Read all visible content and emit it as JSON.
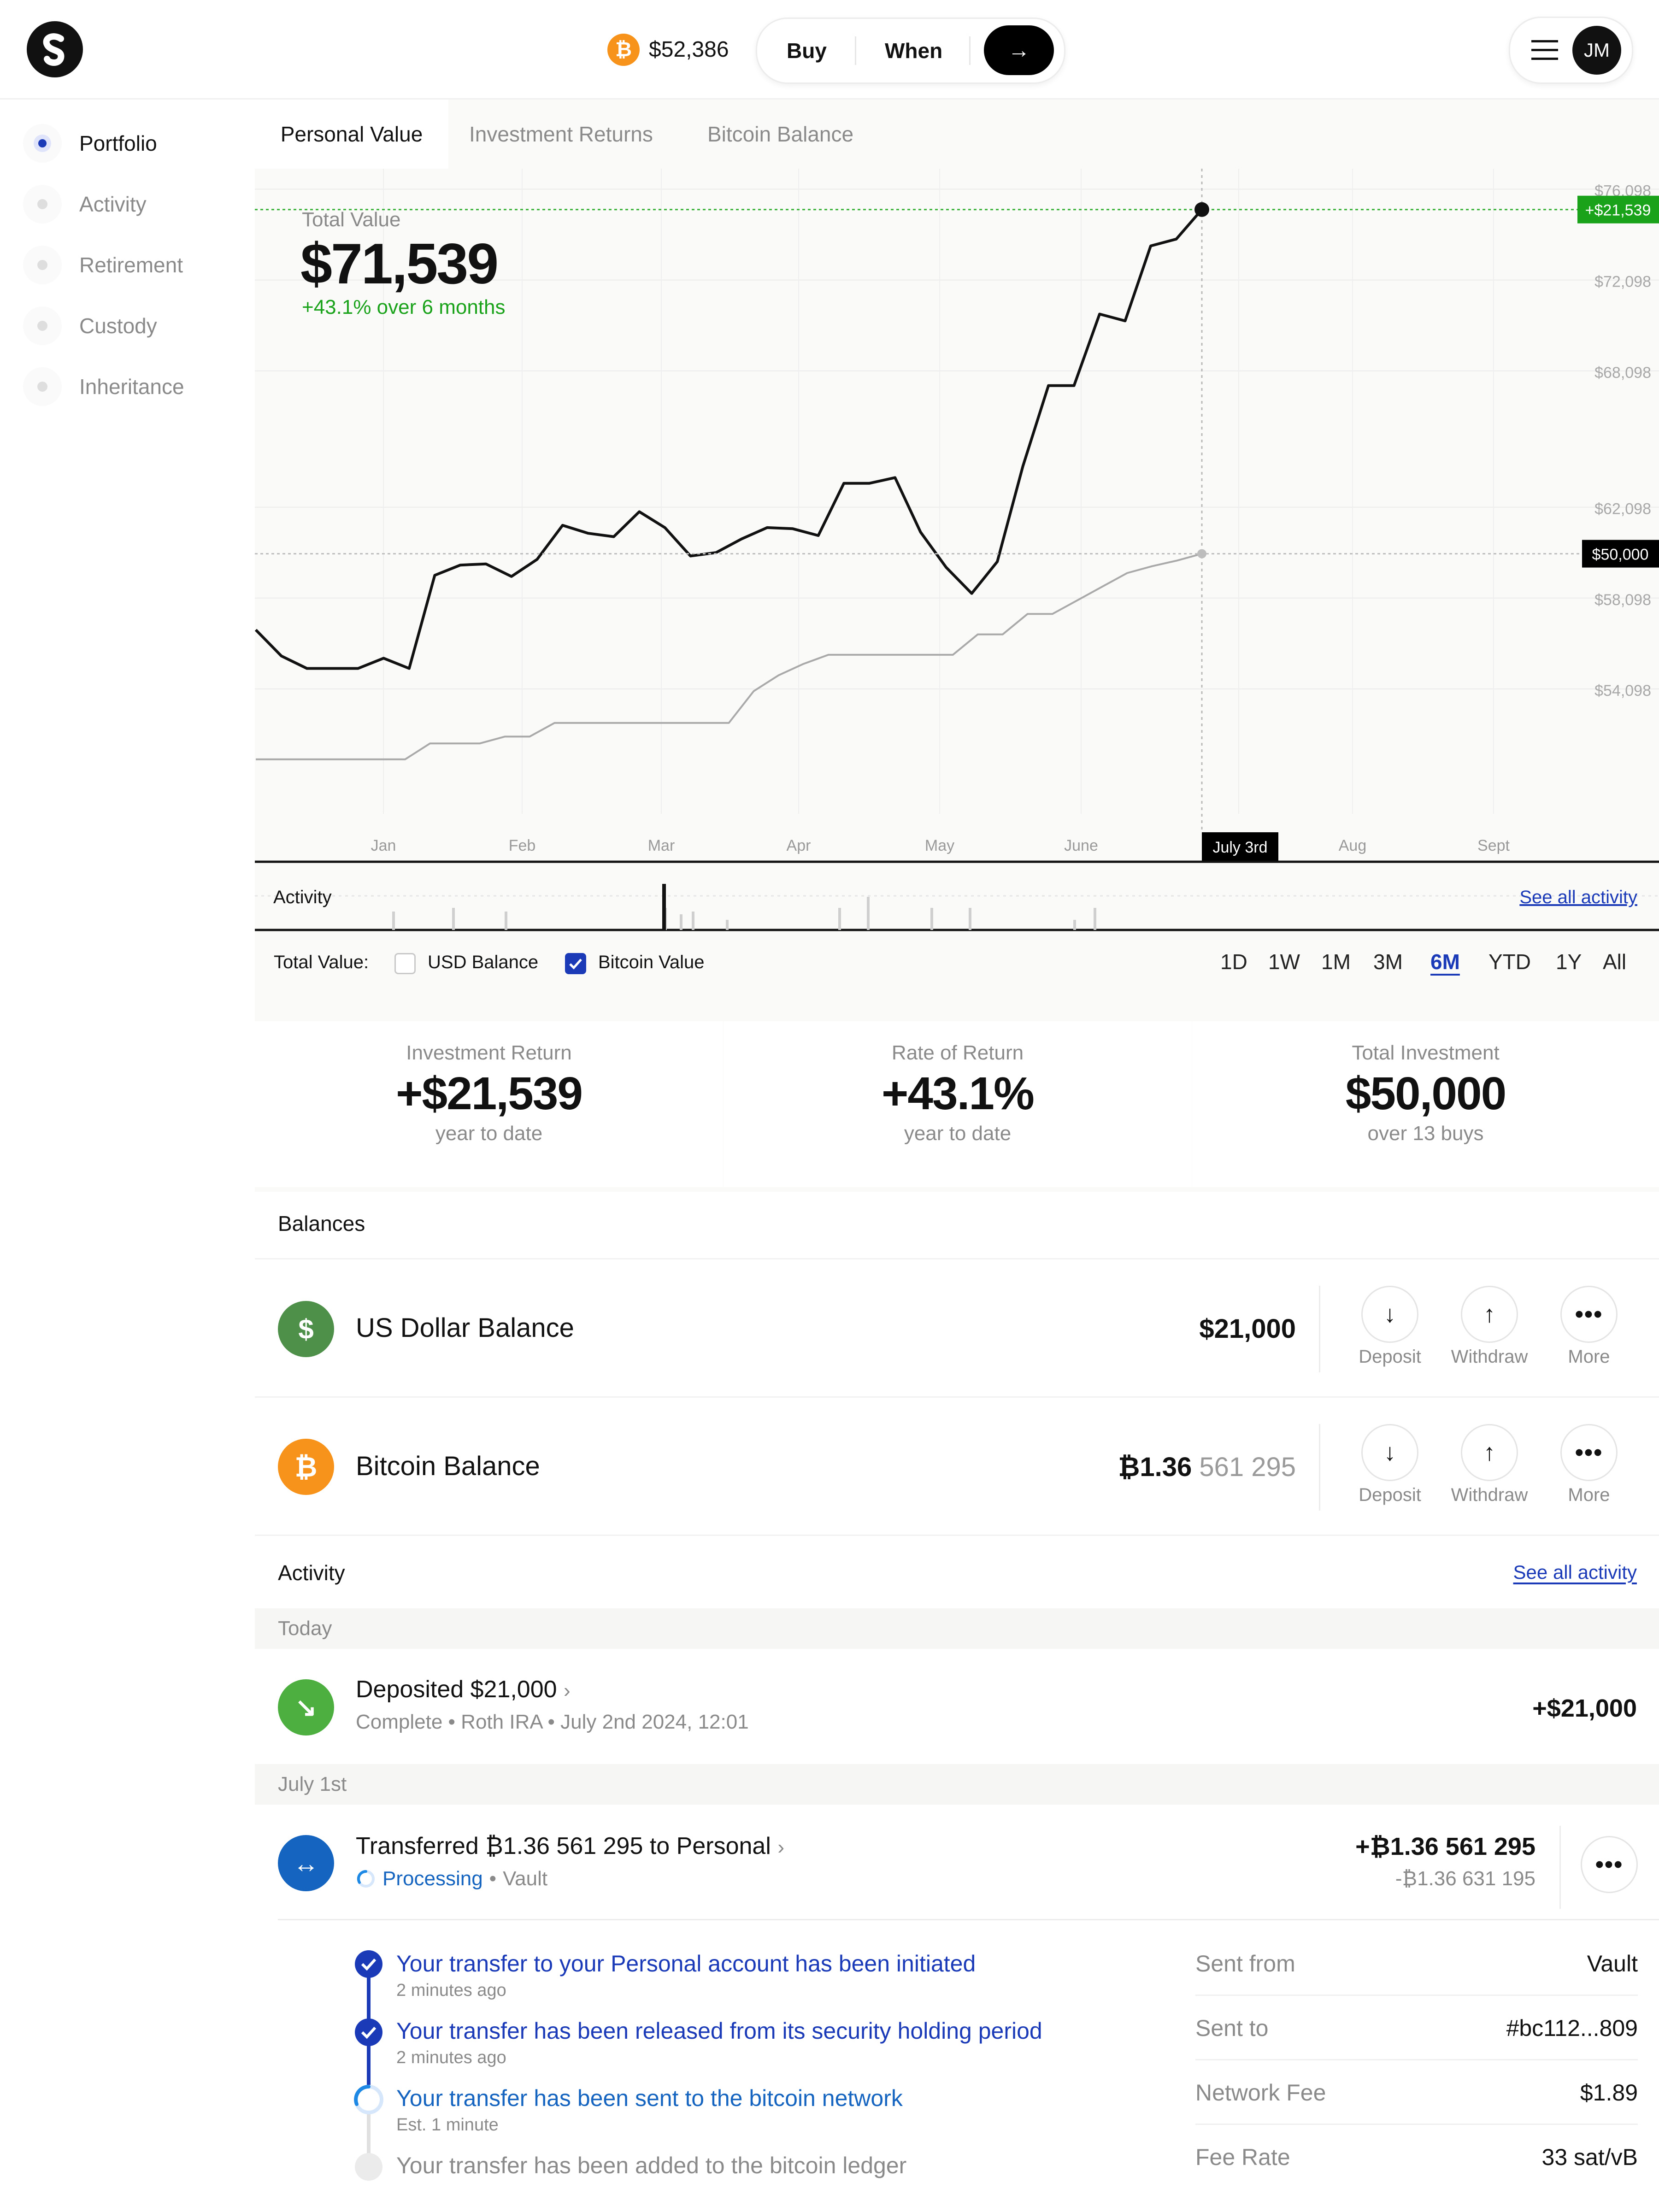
{
  "header": {
    "btc_price": "$52,386",
    "buy_label": "Buy",
    "when_label": "When",
    "go_arrow": "→",
    "avatar_initials": "JM"
  },
  "sidebar": {
    "items": [
      {
        "label": "Portfolio",
        "active": true
      },
      {
        "label": "Activity"
      },
      {
        "label": "Retirement"
      },
      {
        "label": "Custody"
      },
      {
        "label": "Inheritance"
      }
    ]
  },
  "tabs": [
    "Personal Value",
    "Investment Returns",
    "Bitcoin Balance"
  ],
  "summary": {
    "label": "Total Value",
    "value": "$71,539",
    "change": "+43.1% over 6 months"
  },
  "chart_data": {
    "type": "line",
    "x_labels": [
      "Jan",
      "Feb",
      "Mar",
      "Apr",
      "May",
      "June",
      "July 3rd",
      "Aug",
      "Sept"
    ],
    "y_tick_labels": [
      "$76,098",
      "$72,098",
      "$68,098",
      "$62,098",
      "$58,098",
      "$54,098"
    ],
    "series": [
      {
        "values": [
          56700,
          55550,
          55000,
          55000,
          55000,
          55450,
          55000,
          59100,
          59550,
          59600,
          59050,
          59800,
          61300,
          60950,
          60800,
          61900,
          61200,
          59950,
          60100,
          60700,
          61200,
          61150,
          60850,
          63150,
          63150,
          63400,
          61000,
          59450,
          58300,
          59700,
          63900,
          67450,
          67450,
          70600,
          70300,
          73600,
          73900,
          75200
        ]
      },
      {
        "values": [
          51000,
          51000,
          51000,
          51000,
          51000,
          51000,
          51000,
          51700,
          51700,
          51700,
          52000,
          52000,
          52600,
          52600,
          52600,
          52600,
          52600,
          52600,
          52600,
          52600,
          54000,
          54700,
          55200,
          55600,
          55600,
          55600,
          55600,
          55600,
          55600,
          56500,
          56500,
          57400,
          57400,
          58000,
          58600,
          59200,
          59500,
          59750,
          60050
        ]
      }
    ],
    "callouts": {
      "gain": "+$21,539",
      "invested": "$50,000"
    },
    "activity_label": "Activity",
    "activity_link": "See all activity"
  },
  "controls": {
    "total_value_label": "Total Value:",
    "usd_label": "USD Balance",
    "usd_checked": false,
    "btc_label": "Bitcoin Value",
    "btc_checked": true,
    "ranges": [
      "1D",
      "1W",
      "1M",
      "3M",
      "6M",
      "YTD",
      "1Y",
      "All"
    ],
    "active_range": "6M"
  },
  "stats": [
    {
      "label": "Investment Return",
      "value": "+$21,539",
      "sub": "year to date"
    },
    {
      "label": "Rate of Return",
      "value": "+43.1%",
      "sub": "year to date"
    },
    {
      "label": "Total Investment",
      "value": "$50,000",
      "sub": "over 13 buys"
    }
  ],
  "balances": {
    "title": "Balances",
    "usd": {
      "name": "US Dollar Balance",
      "amount": "$21,000",
      "icon": "$"
    },
    "btc": {
      "name": "Bitcoin Balance",
      "amount_main": "₿1.36",
      "amount_sats": "561 295",
      "icon": "₿"
    },
    "actions": {
      "deposit": "Deposit",
      "withdraw": "Withdraw",
      "more": "More"
    }
  },
  "activity": {
    "title": "Activity",
    "link": "See all activity",
    "today": "Today",
    "deposit": {
      "title": "Deposited $21,000",
      "status": "Complete",
      "account": "Roth IRA",
      "date": "July 2nd 2024, 12:01",
      "amount": "+$21,000"
    },
    "july_first": "July 1st",
    "transfer": {
      "title": "Transferred ₿1.36 561 295 to Personal",
      "status": "Processing",
      "account": "Vault",
      "amount": "+₿1.36 561 295",
      "amount_sub": "-₿1.36 631 195"
    },
    "steps": [
      {
        "title": "Your transfer to your Personal account has been initiated",
        "sub": "2 minutes ago"
      },
      {
        "title": "Your transfer has been released from its security holding period",
        "sub": "2 minutes ago"
      },
      {
        "title": "Your transfer has been sent to the bitcoin network",
        "sub": "Est. 1 minute"
      },
      {
        "title": "Your transfer has been added to the bitcoin ledger",
        "sub": ""
      }
    ],
    "details": [
      {
        "k": "Sent from",
        "v": "Vault"
      },
      {
        "k": "Sent to",
        "v": "#bc112...809"
      },
      {
        "k": "Network Fee",
        "v": "$1.89"
      },
      {
        "k": "Fee Rate",
        "v": "33 sat/vB"
      }
    ]
  },
  "colors": {
    "accent": "#1a3ab8",
    "gain": "#1aa31a",
    "btc": "#f7931a",
    "usd": "#4e8f4a",
    "deposit": "#4caf3f",
    "transfer": "#1565c0"
  }
}
